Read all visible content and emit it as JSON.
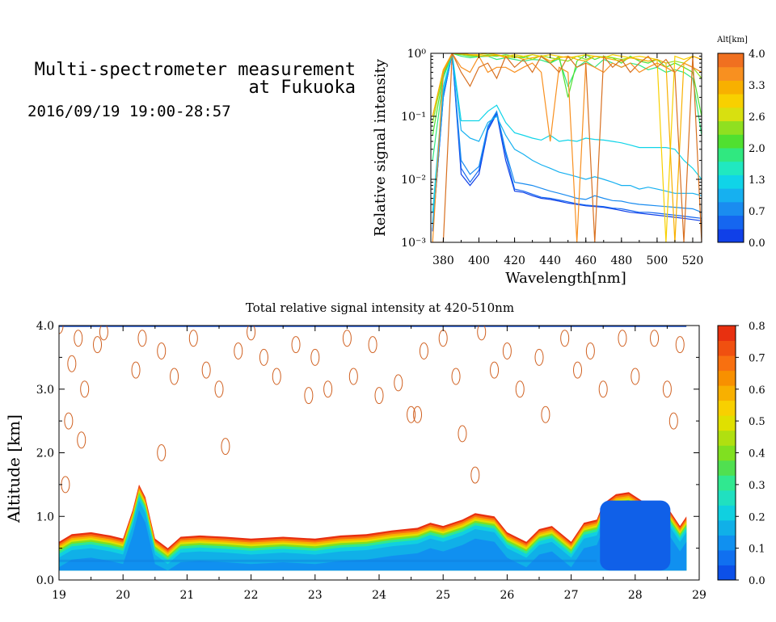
{
  "header": {
    "title_line1": "Multi-spectrometer measurement",
    "title_line2": "at Fukuoka",
    "date_range": "2016/09/19 19:00-28:57"
  },
  "chart_data": [
    {
      "type": "line",
      "xlabel": "Wavelength[nm]",
      "ylabel": "Relative signal intensity",
      "xlim": [
        373,
        525
      ],
      "xticks": [
        380,
        400,
        420,
        440,
        460,
        480,
        500,
        520
      ],
      "ylim": [
        0.001,
        1
      ],
      "yscale": "log",
      "yticks": [
        {
          "value": 0.001,
          "label": "10⁻³"
        },
        {
          "value": 0.01,
          "label": "10⁻²"
        },
        {
          "value": 0.1,
          "label": "10⁻¹"
        },
        {
          "value": 1,
          "label": "10⁰"
        }
      ],
      "colorbar": {
        "label": "Alt[km]",
        "ticks": [
          "4.0",
          "3.3",
          "2.6",
          "2.0",
          "1.3",
          "0.7",
          "0.0"
        ],
        "colors": [
          "#1040e8",
          "#1566f0",
          "#1a8cf0",
          "#16b0f0",
          "#10d4e8",
          "#20e8c0",
          "#30e880",
          "#50e030",
          "#90e020",
          "#d8e010",
          "#f8d000",
          "#f8b000",
          "#f89020",
          "#f07020"
        ]
      },
      "x": [
        374,
        380,
        385,
        390,
        395,
        400,
        405,
        410,
        415,
        420,
        425,
        430,
        435,
        440,
        445,
        450,
        455,
        460,
        465,
        470,
        475,
        480,
        485,
        490,
        495,
        500,
        505,
        510,
        515,
        520,
        525
      ],
      "series": [
        {
          "color": "#1040e8",
          "values": [
            0.0015,
            0.2,
            1.0,
            0.012,
            0.008,
            0.012,
            0.06,
            0.11,
            0.02,
            0.0065,
            0.0062,
            0.0055,
            0.005,
            0.0048,
            0.0045,
            0.0042,
            0.004,
            0.0038,
            0.0037,
            0.0036,
            0.0034,
            0.0032,
            0.003,
            0.0029,
            0.0028,
            0.0027,
            0.0026,
            0.0025,
            0.0024,
            0.0023,
            0.0022
          ]
        },
        {
          "color": "#1566f0",
          "values": [
            0.0015,
            0.2,
            1.0,
            0.015,
            0.009,
            0.014,
            0.065,
            0.115,
            0.025,
            0.007,
            0.0065,
            0.0058,
            0.0052,
            0.005,
            0.0047,
            0.0044,
            0.0041,
            0.0039,
            0.0038,
            0.0037,
            0.0035,
            0.0034,
            0.0032,
            0.003,
            0.003,
            0.0029,
            0.0028,
            0.0027,
            0.0026,
            0.0025,
            0.0024
          ]
        },
        {
          "color": "#1a8cf0",
          "values": [
            0.0016,
            0.22,
            1.0,
            0.02,
            0.012,
            0.016,
            0.07,
            0.12,
            0.028,
            0.009,
            0.0085,
            0.008,
            0.0072,
            0.0065,
            0.006,
            0.0055,
            0.005,
            0.0048,
            0.0055,
            0.005,
            0.0046,
            0.0045,
            0.0042,
            0.004,
            0.0039,
            0.0038,
            0.0037,
            0.0036,
            0.0035,
            0.0034,
            0.003
          ]
        },
        {
          "color": "#16b0f0",
          "values": [
            0.002,
            0.25,
            1.0,
            0.06,
            0.045,
            0.04,
            0.08,
            0.1,
            0.05,
            0.03,
            0.025,
            0.02,
            0.017,
            0.015,
            0.013,
            0.012,
            0.011,
            0.01,
            0.011,
            0.01,
            0.009,
            0.008,
            0.008,
            0.007,
            0.0075,
            0.007,
            0.0065,
            0.006,
            0.006,
            0.006,
            0.0055
          ]
        },
        {
          "color": "#10d4e8",
          "values": [
            0.003,
            0.3,
            1.0,
            0.085,
            0.085,
            0.085,
            0.12,
            0.15,
            0.08,
            0.055,
            0.05,
            0.045,
            0.042,
            0.05,
            0.04,
            0.042,
            0.04,
            0.045,
            0.043,
            0.042,
            0.04,
            0.038,
            0.035,
            0.032,
            0.032,
            0.032,
            0.032,
            0.03,
            0.02,
            0.015,
            0.01
          ]
        },
        {
          "color": "#30e880",
          "values": [
            0.02,
            0.4,
            1.0,
            0.9,
            0.85,
            0.88,
            0.9,
            0.8,
            0.85,
            0.8,
            0.75,
            0.8,
            0.78,
            0.7,
            0.82,
            0.3,
            0.6,
            0.75,
            0.6,
            0.8,
            0.7,
            0.6,
            0.7,
            0.65,
            0.55,
            0.6,
            0.5,
            0.55,
            0.5,
            0.4,
            0.05
          ]
        },
        {
          "color": "#50e030",
          "values": [
            0.05,
            0.45,
            1.0,
            0.95,
            0.9,
            0.9,
            0.92,
            0.9,
            0.95,
            0.9,
            0.85,
            0.95,
            0.88,
            0.7,
            0.9,
            0.2,
            0.75,
            0.95,
            0.8,
            0.9,
            0.85,
            0.7,
            0.9,
            0.75,
            0.7,
            0.8,
            0.6,
            0.7,
            0.6,
            0.5,
            0.1
          ]
        },
        {
          "color": "#90e020",
          "values": [
            0.08,
            0.5,
            1.0,
            0.95,
            0.92,
            0.9,
            0.95,
            0.92,
            0.9,
            0.85,
            0.9,
            0.8,
            0.92,
            0.85,
            0.8,
            0.75,
            0.9,
            0.8,
            0.9,
            0.88,
            0.85,
            0.8,
            0.85,
            0.8,
            0.75,
            0.8,
            0.7,
            0.75,
            0.7,
            0.6,
            0.4
          ]
        },
        {
          "color": "#f8d000",
          "values": [
            0.1,
            0.55,
            1.0,
            1.0,
            0.95,
            0.95,
            1.0,
            0.95,
            0.9,
            0.95,
            0.9,
            0.95,
            0.9,
            0.95,
            0.9,
            0.85,
            0.9,
            0.95,
            0.9,
            0.85,
            0.95,
            0.9,
            0.85,
            0.9,
            0.85,
            0.8,
            0.001,
            0.9,
            0.8,
            0.9,
            0.8
          ]
        },
        {
          "color": "#f8b000",
          "values": [
            0.1,
            0.55,
            1.0,
            0.98,
            0.95,
            0.92,
            0.9,
            0.95,
            0.85,
            0.9,
            0.8,
            0.85,
            0.9,
            0.75,
            0.85,
            0.9,
            0.8,
            0.75,
            0.9,
            0.85,
            0.8,
            0.75,
            0.85,
            0.8,
            0.75,
            0.8,
            0.7,
            0.001,
            0.7,
            0.9,
            0.8
          ]
        },
        {
          "color": "#f89020",
          "values": [
            0.001,
            0.5,
            1.0,
            0.6,
            0.5,
            0.9,
            0.5,
            0.6,
            0.6,
            0.5,
            0.6,
            0.7,
            0.5,
            0.04,
            0.6,
            0.5,
            0.001,
            0.7,
            0.6,
            0.5,
            0.7,
            0.6,
            0.7,
            0.5,
            0.6,
            0.7,
            0.6,
            0.5,
            0.7,
            0.6,
            0.5
          ]
        },
        {
          "color": "#d87020",
          "values": [
            0.001,
            0.001,
            1.0,
            0.5,
            0.3,
            0.6,
            0.7,
            0.4,
            0.9,
            0.6,
            0.8,
            0.5,
            0.9,
            0.7,
            0.5,
            0.9,
            0.6,
            0.7,
            0.001,
            0.9,
            0.6,
            0.8,
            0.5,
            0.7,
            0.9,
            0.6,
            0.8,
            0.5,
            0.001,
            0.9,
            0.001
          ]
        }
      ]
    },
    {
      "type": "heatmap",
      "title": "Total relative signal intensity at 420-510nm",
      "ylabel": "Altitude [km]",
      "xlim": [
        19,
        29
      ],
      "xticks": [
        "19",
        "20",
        "21",
        "22",
        "23",
        "24",
        "25",
        "26",
        "27",
        "28",
        "29"
      ],
      "ylim": [
        0,
        4
      ],
      "yticks": [
        "0.0",
        "1.0",
        "2.0",
        "3.0",
        "4.0"
      ],
      "data_x_range": [
        19,
        28.8
      ],
      "data_bottom_km": 0.15,
      "colorbar": {
        "ticks": [
          "0.0",
          "0.1",
          "0.2",
          "0.3",
          "0.4",
          "0.5",
          "0.6",
          "0.7",
          "0.8"
        ],
        "range": [
          0,
          0.8
        ],
        "colors": [
          "#0c50e8",
          "#1070f0",
          "#1090f0",
          "#10b0e8",
          "#10d0e0",
          "#20e0c0",
          "#30e890",
          "#50e050",
          "#80e020",
          "#b0e010",
          "#e0e000",
          "#f8d000",
          "#f8b000",
          "#f89000",
          "#f87010",
          "#f05010",
          "#e83010"
        ]
      },
      "top_boundary": {
        "x": [
          19.0,
          19.2,
          19.5,
          19.8,
          20.0,
          20.15,
          20.25,
          20.35,
          20.5,
          20.7,
          20.9,
          21.2,
          21.6,
          22.0,
          22.5,
          23.0,
          23.4,
          23.8,
          24.2,
          24.6,
          24.8,
          25.0,
          25.3,
          25.5,
          25.8,
          26.0,
          26.3,
          26.5,
          26.7,
          27.0,
          27.2,
          27.4,
          27.5,
          27.7,
          27.9,
          28.1,
          28.3,
          28.5,
          28.7,
          28.8
        ],
        "y": [
          0.6,
          0.72,
          0.75,
          0.7,
          0.65,
          1.1,
          1.5,
          1.3,
          0.65,
          0.5,
          0.68,
          0.7,
          0.68,
          0.65,
          0.68,
          0.65,
          0.7,
          0.72,
          0.78,
          0.82,
          0.9,
          0.85,
          0.95,
          1.05,
          1.0,
          0.75,
          0.6,
          0.8,
          0.85,
          0.6,
          0.9,
          0.95,
          1.2,
          1.35,
          1.38,
          1.25,
          1.2,
          1.15,
          0.85,
          1.0
        ]
      },
      "blob_samples": [
        [
          19.0,
          4.0
        ],
        [
          19.3,
          3.8
        ],
        [
          19.6,
          3.7
        ],
        [
          19.2,
          3.4
        ],
        [
          19.4,
          3.0
        ],
        [
          19.15,
          2.5
        ],
        [
          19.35,
          2.2
        ],
        [
          19.1,
          1.5
        ],
        [
          19.7,
          3.9
        ],
        [
          20.2,
          3.3
        ],
        [
          20.3,
          3.8
        ],
        [
          20.6,
          3.6
        ],
        [
          20.8,
          3.2
        ],
        [
          21.1,
          3.8
        ],
        [
          21.3,
          3.3
        ],
        [
          21.5,
          3.0
        ],
        [
          21.8,
          3.6
        ],
        [
          22.0,
          3.9
        ],
        [
          22.2,
          3.5
        ],
        [
          22.4,
          3.2
        ],
        [
          22.7,
          3.7
        ],
        [
          23.0,
          3.5
        ],
        [
          23.2,
          3.0
        ],
        [
          23.5,
          3.8
        ],
        [
          23.6,
          3.2
        ],
        [
          23.9,
          3.7
        ],
        [
          24.0,
          2.9
        ],
        [
          24.3,
          3.1
        ],
        [
          24.5,
          2.6
        ],
        [
          24.7,
          3.6
        ],
        [
          25.0,
          3.8
        ],
        [
          25.2,
          3.2
        ],
        [
          25.3,
          2.3
        ],
        [
          25.6,
          3.9
        ],
        [
          25.8,
          3.3
        ],
        [
          26.0,
          3.6
        ],
        [
          26.2,
          3.0
        ],
        [
          26.5,
          3.5
        ],
        [
          26.6,
          2.6
        ],
        [
          26.9,
          3.8
        ],
        [
          27.1,
          3.3
        ],
        [
          27.3,
          3.6
        ],
        [
          27.5,
          3.0
        ],
        [
          27.8,
          3.8
        ],
        [
          28.0,
          3.2
        ],
        [
          28.3,
          3.8
        ],
        [
          28.5,
          3.0
        ],
        [
          28.6,
          2.5
        ],
        [
          28.7,
          3.7
        ],
        [
          25.5,
          1.65
        ],
        [
          20.6,
          2.0
        ],
        [
          21.6,
          2.1
        ],
        [
          22.9,
          2.9
        ],
        [
          24.6,
          2.6
        ]
      ]
    }
  ]
}
